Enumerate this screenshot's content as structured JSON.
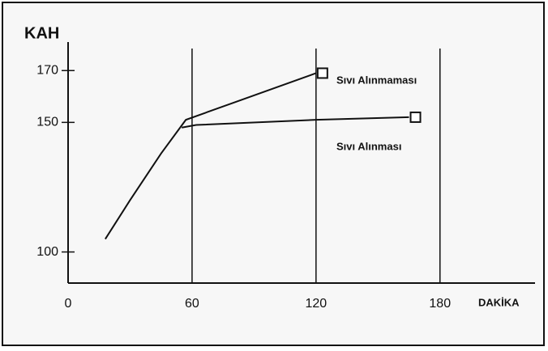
{
  "chart_data": {
    "type": "line",
    "y_label": "KAH",
    "x_label": "DAKİKA",
    "series": [
      {
        "name": "Sıvı Alınmaması",
        "color": "#111111",
        "x": [
          18,
          30,
          45,
          57,
          120
        ],
        "values": [
          105,
          120,
          138,
          151,
          169
        ]
      },
      {
        "name": "Sıvı Alınması",
        "color": "#111111",
        "x": [
          55,
          62,
          120,
          165
        ],
        "values": [
          148,
          149,
          151,
          152
        ]
      }
    ],
    "xlim": [
      0,
      226
    ],
    "xticks": [
      0,
      60,
      120,
      180
    ],
    "ylim": [
      88,
      181
    ],
    "yticks": [
      100,
      150,
      170
    ],
    "grid": true,
    "end_markers": true
  }
}
